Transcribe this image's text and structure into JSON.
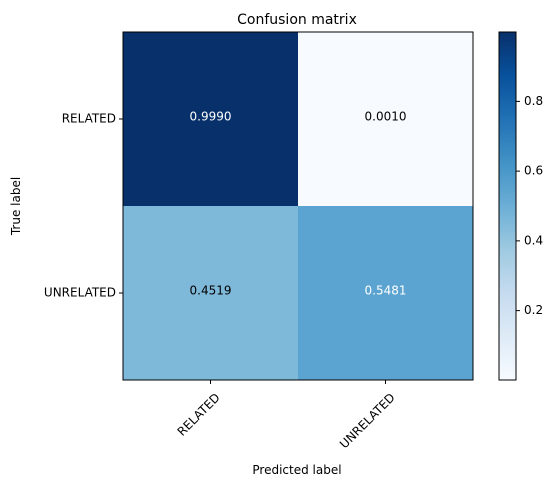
{
  "chart_data": {
    "type": "heatmap",
    "title": "Confusion matrix",
    "xlabel": "Predicted label",
    "ylabel": "True label",
    "x_categories": [
      "RELATED",
      "UNRELATED"
    ],
    "y_categories": [
      "RELATED",
      "UNRELATED"
    ],
    "values": [
      [
        0.999,
        0.001
      ],
      [
        0.4519,
        0.5481
      ]
    ],
    "cell_labels": [
      [
        "0.9990",
        "0.0010"
      ],
      [
        "0.4519",
        "0.5481"
      ]
    ],
    "colorbar": {
      "range": [
        0.001,
        0.999
      ],
      "ticks": [
        0.2,
        0.4,
        0.6,
        0.8
      ],
      "tick_labels": [
        "0.2",
        "0.4",
        "0.6",
        "0.8"
      ]
    },
    "colormap": "Blues",
    "colormap_stops": [
      "#f7fbff",
      "#deebf7",
      "#c6dbef",
      "#9ecae1",
      "#6baed6",
      "#4292c6",
      "#2171b5",
      "#08519c",
      "#08306b"
    ],
    "x_tick_rotation_deg": 45
  }
}
